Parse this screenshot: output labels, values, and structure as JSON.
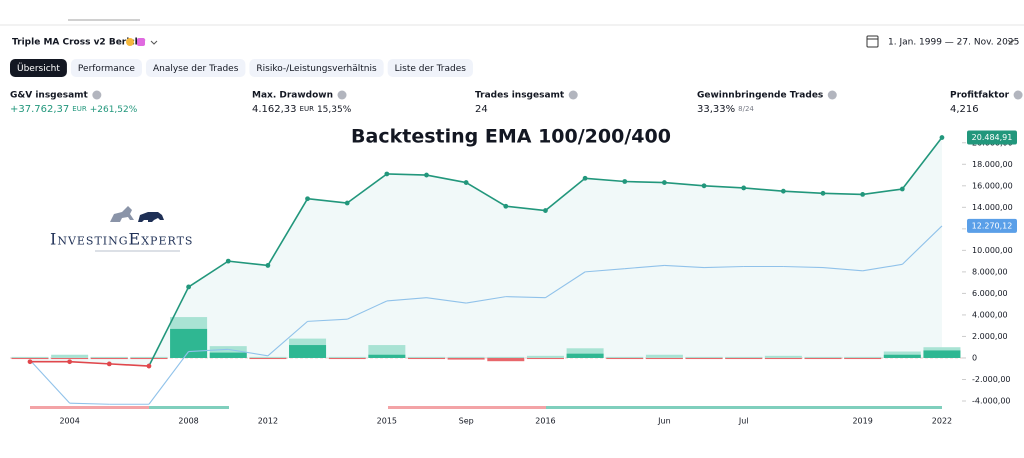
{
  "header": {
    "title": "Triple MA Cross v2 Bericht",
    "date_range": "1. Jan. 1999 — 27. Nov. 2025"
  },
  "tabs": [
    "Übersicht",
    "Performance",
    "Analyse der Trades",
    "Risiko-/Leistungsverhältnis",
    "Liste der Trades"
  ],
  "stats": [
    {
      "label": "G&V insgesamt",
      "value": "+37.762,37",
      "unit": "EUR",
      "extra": "+261,52%"
    },
    {
      "label": "Max. Drawdown",
      "value": "4.162,33",
      "unit": "EUR",
      "extra": "15,35%"
    },
    {
      "label": "Trades insgesamt",
      "value": "24"
    },
    {
      "label": "Gewinnbringende Trades",
      "value": "33,33%",
      "extra": "8/24"
    },
    {
      "label": "Profitfaktor",
      "value": "4,216"
    }
  ],
  "logo": "InvestingExperts",
  "chart_data": {
    "type": "line",
    "title": "Backtesting EMA 100/200/400",
    "categories": [
      null,
      "2004",
      null,
      null,
      "2008",
      null,
      "2012",
      null,
      null,
      "2015",
      null,
      "Sep",
      null,
      "2016",
      null,
      null,
      "Jun",
      null,
      "Jul",
      null,
      null,
      "2019",
      null,
      "2022"
    ],
    "ylim": [
      -5300,
      21000
    ],
    "yticks": [
      {
        "value": -4000,
        "label": "-4.000,00"
      },
      {
        "value": -2000,
        "label": "-2.000,00"
      },
      0,
      {
        "value": 2000,
        "label": "2.000,00"
      },
      {
        "value": 4000,
        "label": "4.000,00"
      },
      {
        "value": 6000,
        "label": "6.000,00"
      },
      {
        "value": 8000,
        "label": "8.000,00"
      },
      {
        "value": 10000,
        "label": "10.000,00"
      },
      {
        "value": 12000,
        "label": "12.000,00"
      },
      {
        "value": 14000,
        "label": "14.000,00"
      },
      {
        "value": 16000,
        "label": "16.000,00"
      },
      {
        "value": 18000,
        "label": "18.000,00"
      },
      {
        "value": 20000,
        "label": "20.000,00"
      }
    ],
    "series": [
      {
        "type": "bar",
        "color": "#a9e3d4",
        "negative_color": "#f6c1c3",
        "values": [
          100,
          300,
          100,
          100,
          3800,
          1100,
          100,
          1800,
          100,
          1200,
          100,
          100,
          100,
          200,
          900,
          100,
          300,
          100,
          100,
          200,
          100,
          100,
          600,
          1000
        ]
      },
      {
        "type": "bar",
        "color": "#2fb792",
        "negative_color": "#e8676b",
        "values": [
          -100,
          -100,
          -100,
          -100,
          2700,
          500,
          -100,
          1200,
          -100,
          300,
          -100,
          -150,
          -300,
          -100,
          400,
          -100,
          -100,
          -100,
          -100,
          -100,
          -100,
          -100,
          300,
          700
        ]
      },
      {
        "type": "line",
        "color": "#90c2ea",
        "values": [
          -200,
          -4200,
          -4300,
          -4300,
          600,
          800,
          200,
          3400,
          3600,
          5300,
          5600,
          5100,
          5700,
          5600,
          8000,
          8300,
          8600,
          8400,
          8500,
          8500,
          8400,
          8100,
          8700,
          12270.12
        ],
        "value_labels": [
          null,
          null,
          null,
          null,
          null,
          null,
          null,
          null,
          null,
          null,
          null,
          null,
          null,
          null,
          null,
          null,
          null,
          null,
          null,
          null,
          null,
          null,
          null,
          "12.270,12"
        ],
        "label_color": "#5a9fe8"
      },
      {
        "type": "line",
        "color": "#22977c",
        "negative_color": "#e0474c",
        "fill": "#eef7f7",
        "values": [
          -350,
          -350,
          -550,
          -750,
          6600,
          9000,
          8600,
          14800,
          14400,
          17100,
          17000,
          16300,
          14100,
          13700,
          16700,
          16400,
          16300,
          16000,
          15800,
          15500,
          15300,
          15200,
          15700,
          20484.91
        ],
        "value_labels": [
          null,
          null,
          null,
          null,
          null,
          null,
          null,
          null,
          null,
          null,
          null,
          null,
          null,
          null,
          null,
          null,
          null,
          null,
          null,
          null,
          null,
          null,
          null,
          "20.484,91"
        ],
        "label_color": "#22977c"
      }
    ]
  }
}
